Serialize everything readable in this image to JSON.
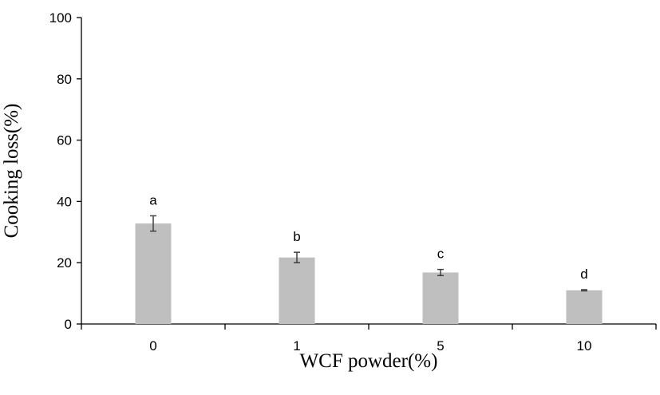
{
  "chart_data": {
    "type": "bar",
    "title": "",
    "xlabel": "WCF powder(%)",
    "ylabel": "Cooking loss(%)",
    "categories": [
      "0",
      "1",
      "5",
      "10"
    ],
    "values": [
      32.8,
      21.7,
      16.8,
      11.0
    ],
    "errors": [
      2.5,
      1.7,
      1.0,
      0.2
    ],
    "significance_letters": [
      "a",
      "b",
      "c",
      "d"
    ],
    "ylim": [
      0,
      100
    ],
    "yticks": [
      0,
      20,
      40,
      60,
      80,
      100
    ],
    "ytick_labels": [
      "0",
      "20",
      "40",
      "60",
      "80",
      "100"
    ],
    "grid": false,
    "legend": "none",
    "bar_color": "#bfbfbf",
    "axis_color": "#000000",
    "errorbar_color": "#404040"
  }
}
